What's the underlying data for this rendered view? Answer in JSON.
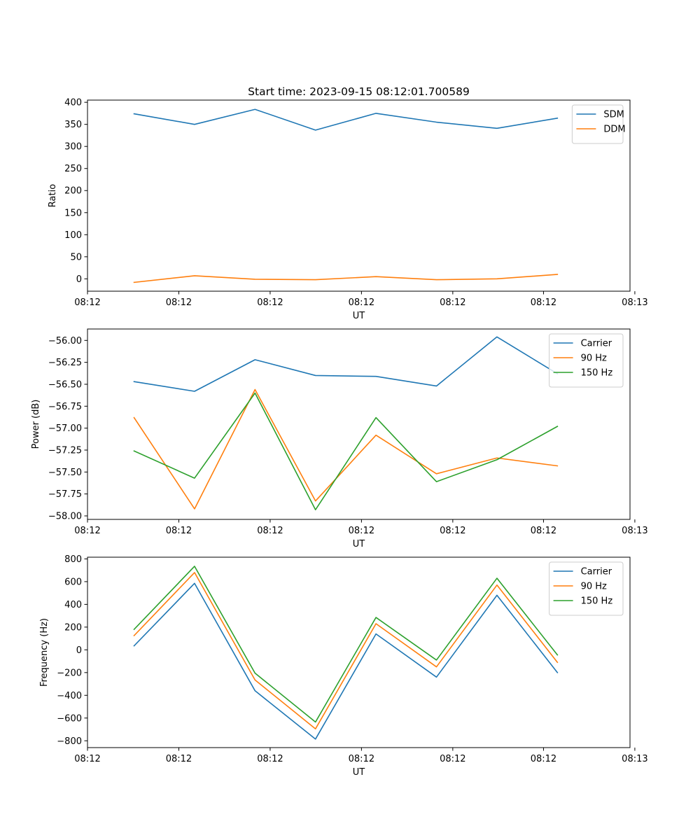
{
  "figure": {
    "title": "Start time: 2023-09-15 08:12:01.700589"
  },
  "chart_data": [
    {
      "type": "line",
      "title": "Start time: 2023-09-15 08:12:01.700589",
      "xlabel": "UT",
      "ylabel": "Ratio",
      "x": [
        1,
        2,
        3,
        4,
        5,
        6,
        7,
        8
      ],
      "xlim": [
        0.23,
        9.2
      ],
      "ylim": [
        -28,
        405
      ],
      "yticks": [
        0,
        50,
        100,
        150,
        200,
        250,
        300,
        350,
        400
      ],
      "ytick_labels": [
        "0",
        "50",
        "100",
        "150",
        "200",
        "250",
        "300",
        "350",
        "400"
      ],
      "xticks": [
        0.23,
        1.74,
        3.25,
        4.76,
        6.27,
        7.77,
        9.28
      ],
      "xtick_labels": [
        "08:12",
        "08:12",
        "08:12",
        "08:12",
        "08:12",
        "08:12",
        "08:13"
      ],
      "legend_position": "upper-right",
      "series": [
        {
          "name": "SDM",
          "color": "#1f77b4",
          "values": [
            374,
            350,
            384,
            337,
            375,
            355,
            341,
            364
          ]
        },
        {
          "name": "DDM",
          "color": "#ff7f0e",
          "values": [
            -8,
            7,
            -1,
            -2,
            5,
            -2,
            0,
            10
          ]
        }
      ]
    },
    {
      "type": "line",
      "title": "",
      "xlabel": "UT",
      "ylabel": "Power (dB)",
      "x": [
        1,
        2,
        3,
        4,
        5,
        6,
        7,
        8
      ],
      "xlim": [
        0.23,
        9.2
      ],
      "ylim": [
        -58.04,
        -55.87
      ],
      "yticks": [
        -58.0,
        -57.75,
        -57.5,
        -57.25,
        -57.0,
        -56.75,
        -56.5,
        -56.25,
        -56.0
      ],
      "ytick_labels": [
        "−58.00",
        "−57.75",
        "−57.50",
        "−57.25",
        "−57.00",
        "−56.75",
        "−56.50",
        "−56.25",
        "−56.00"
      ],
      "xticks": [
        0.23,
        1.74,
        3.25,
        4.76,
        6.27,
        7.77,
        9.28
      ],
      "xtick_labels": [
        "08:12",
        "08:12",
        "08:12",
        "08:12",
        "08:12",
        "08:12",
        "08:13"
      ],
      "legend_position": "upper-right",
      "series": [
        {
          "name": "Carrier",
          "color": "#1f77b4",
          "values": [
            -56.47,
            -56.58,
            -56.22,
            -56.4,
            -56.41,
            -56.52,
            -55.96,
            -56.38
          ]
        },
        {
          "name": "90 Hz",
          "color": "#ff7f0e",
          "values": [
            -56.88,
            -57.92,
            -56.56,
            -57.83,
            -57.08,
            -57.52,
            -57.34,
            -57.43
          ]
        },
        {
          "name": "150 Hz",
          "color": "#2ca02c",
          "values": [
            -57.26,
            -57.57,
            -56.6,
            -57.93,
            -56.88,
            -57.61,
            -57.36,
            -56.98
          ]
        }
      ]
    },
    {
      "type": "line",
      "title": "",
      "xlabel": "UT",
      "ylabel": "Frequency (Hz)",
      "x": [
        1,
        2,
        3,
        4,
        5,
        6,
        7,
        8
      ],
      "xlim": [
        0.23,
        9.2
      ],
      "ylim": [
        -860,
        815
      ],
      "yticks": [
        -800,
        -600,
        -400,
        -200,
        0,
        200,
        400,
        600,
        800
      ],
      "ytick_labels": [
        "−800",
        "−600",
        "−400",
        "−200",
        "0",
        "200",
        "400",
        "600",
        "800"
      ],
      "xticks": [
        0.23,
        1.74,
        3.25,
        4.76,
        6.27,
        7.77,
        9.28
      ],
      "xtick_labels": [
        "08:12",
        "08:12",
        "08:12",
        "08:12",
        "08:12",
        "08:12",
        "08:13"
      ],
      "legend_position": "upper-right",
      "series": [
        {
          "name": "Carrier",
          "color": "#1f77b4",
          "values": [
            35,
            585,
            -360,
            -785,
            140,
            -240,
            480,
            -200
          ]
        },
        {
          "name": "90 Hz",
          "color": "#ff7f0e",
          "values": [
            125,
            680,
            -265,
            -695,
            230,
            -150,
            570,
            -110
          ]
        },
        {
          "name": "150 Hz",
          "color": "#2ca02c",
          "values": [
            180,
            735,
            -205,
            -635,
            285,
            -90,
            630,
            -45
          ]
        }
      ]
    }
  ]
}
